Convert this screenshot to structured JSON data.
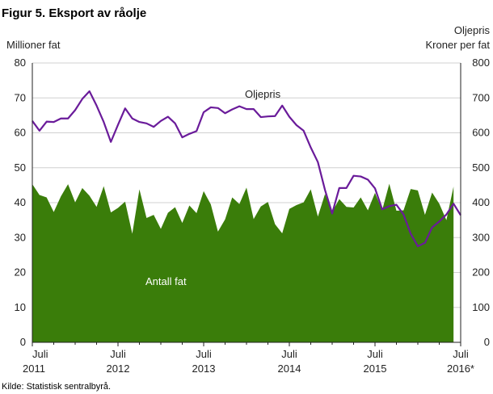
{
  "title": "Figur 5. Eksport av råolje",
  "source": "Kilde: Statistisk sentralbyrå.",
  "chart_data": {
    "type": "area",
    "left_axis_label": "Millioner fat",
    "right_axis_label_line1": "Oljepris",
    "right_axis_label_line2": "Kroner per fat",
    "ylim_left": [
      0,
      80
    ],
    "ylim_right": [
      0,
      800
    ],
    "yticks_left": [
      "0",
      "10",
      "20",
      "30",
      "40",
      "50",
      "60",
      "70",
      "80"
    ],
    "yticks_right": [
      "0",
      "100",
      "200",
      "300",
      "400",
      "500",
      "600",
      "700",
      "800"
    ],
    "x_ticks": [
      {
        "month": "Juli",
        "year": "2011",
        "index": 0
      },
      {
        "month": "Juli",
        "year": "2012",
        "index": 12
      },
      {
        "month": "Juli",
        "year": "2013",
        "index": 24
      },
      {
        "month": "Juli",
        "year": "2014",
        "index": 36
      },
      {
        "month": "Juli",
        "year": "2015",
        "index": 48
      },
      {
        "month": "Juli",
        "year": "2016*",
        "index": 60
      }
    ],
    "x": [
      "2011-07",
      "2011-08",
      "2011-09",
      "2011-10",
      "2011-11",
      "2011-12",
      "2012-01",
      "2012-02",
      "2012-03",
      "2012-04",
      "2012-05",
      "2012-06",
      "2012-07",
      "2012-08",
      "2012-09",
      "2012-10",
      "2012-11",
      "2012-12",
      "2013-01",
      "2013-02",
      "2013-03",
      "2013-04",
      "2013-05",
      "2013-06",
      "2013-07",
      "2013-08",
      "2013-09",
      "2013-10",
      "2013-11",
      "2013-12",
      "2014-01",
      "2014-02",
      "2014-03",
      "2014-04",
      "2014-05",
      "2014-06",
      "2014-07",
      "2014-08",
      "2014-09",
      "2014-10",
      "2014-11",
      "2014-12",
      "2015-01",
      "2015-02",
      "2015-03",
      "2015-04",
      "2015-05",
      "2015-06",
      "2015-07",
      "2015-08",
      "2015-09",
      "2015-10",
      "2015-11",
      "2015-12",
      "2016-01",
      "2016-02",
      "2016-03",
      "2016-04",
      "2016-05",
      "2016-06",
      "2016-07"
    ],
    "series": [
      {
        "name": "Antall fat",
        "axis": "left",
        "kind": "area",
        "color": "#3a7d0a",
        "values": [
          45.3,
          42.2,
          41.5,
          37.3,
          41.8,
          45.3,
          40.1,
          44.2,
          42.0,
          38.8,
          44.7,
          37.2,
          38.5,
          40.3,
          31.1,
          43.8,
          35.6,
          36.5,
          32.5,
          37.1,
          38.7,
          34.2,
          39.2,
          37.0,
          43.3,
          39.5,
          31.7,
          35.2,
          41.5,
          39.6,
          44.3,
          35.3,
          38.9,
          40.2,
          33.8,
          31.2,
          38.2,
          39.3,
          40.1,
          43.8,
          36.0,
          42.5,
          37.4,
          41.0,
          38.8,
          38.6,
          41.5,
          37.8,
          42.8,
          37.8,
          45.4,
          37.7,
          37.8,
          43.9,
          43.5,
          36.5,
          42.9,
          39.7,
          35.0,
          44.6,
          null
        ]
      },
      {
        "name": "Oljepris",
        "axis": "right",
        "kind": "line",
        "color": "#6a1b9a",
        "values": [
          634,
          606,
          632,
          631,
          641,
          641,
          665,
          697,
          719,
          678,
          631,
          574,
          623,
          670,
          641,
          631,
          627,
          617,
          634,
          646,
          627,
          587,
          597,
          605,
          659,
          673,
          671,
          656,
          667,
          676,
          668,
          668,
          645,
          647,
          648,
          678,
          646,
          622,
          606,
          558,
          516,
          436,
          369,
          442,
          442,
          477,
          475,
          466,
          441,
          381,
          390,
          394,
          366,
          311,
          275,
          285,
          329,
          346,
          366,
          397,
          364
        ]
      }
    ],
    "annotations": [
      "Oljepris",
      "Antall fat"
    ]
  }
}
